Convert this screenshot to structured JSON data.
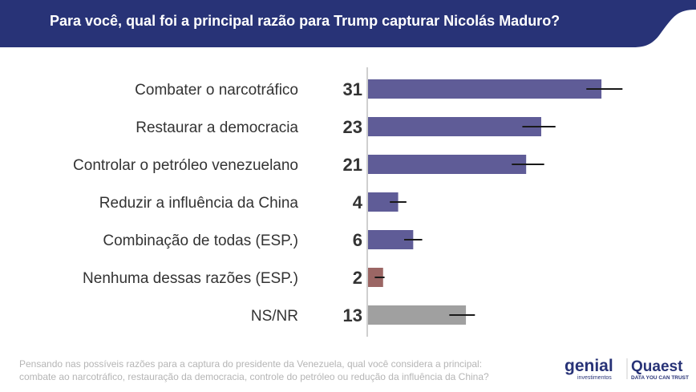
{
  "header": {
    "title": "Para você, qual foi a principal razão para Trump capturar Nicolás Maduro?",
    "color": "#283377"
  },
  "chart_data": {
    "type": "bar",
    "orientation": "horizontal",
    "categories": [
      "Combater o narcotráfico",
      "Restaurar a democracia",
      "Controlar o petróleo venezuelano",
      "Reduzir a influência da China",
      "Combinação de todas (ESP.)",
      "Nenhuma dessas razões (ESP.)",
      "NS/NR"
    ],
    "values": [
      31,
      23,
      21,
      4,
      6,
      2,
      13
    ],
    "error_bars": [
      [
        29.1,
        33.9
      ],
      [
        20.6,
        25
      ],
      [
        19.2,
        23.5
      ],
      [
        3,
        5.2
      ],
      [
        4.9,
        7.3
      ],
      [
        1,
        2.3
      ],
      [
        10.9,
        14.3
      ]
    ],
    "colors": [
      "#5f5c97",
      "#5f5c97",
      "#5f5c97",
      "#5f5c97",
      "#5f5c97",
      "#9b6664",
      "#a0a0a0"
    ],
    "xlim": [
      0,
      33
    ]
  },
  "footnote": {
    "line1": "Pensando nas possíveis razões para a captura do presidente da Venezuela, qual você considera a principal:",
    "line2": "combate ao narcotráfico, restauração da democracia, controle do petróleo ou redução da influência da China?"
  },
  "logos": {
    "genial": "genial",
    "genial_sub": "investimentos",
    "quaest": "Quaest",
    "quaest_sub": "DATA YOU CAN TRUST"
  }
}
